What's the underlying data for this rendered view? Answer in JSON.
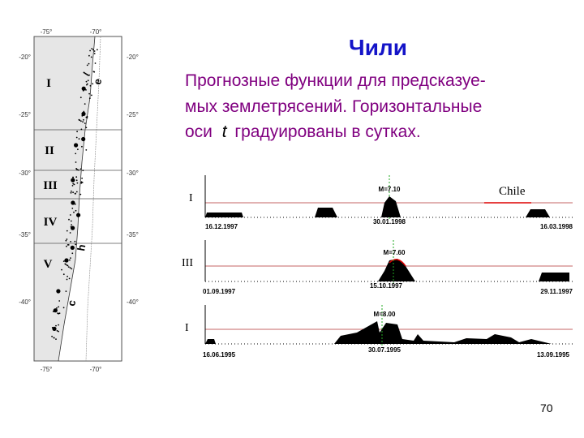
{
  "header": {
    "title": "Чили"
  },
  "body": {
    "lines": [
      "Прогнозные функции для предсказуе-",
      "мых землетрясений.  Горизонтальные"
    ],
    "last_line": [
      "оси ",
      "t",
      " градуированы в сутках."
    ]
  },
  "map": {
    "lat_labels": [
      "-20°",
      "-25°",
      "-30°",
      "-35°",
      "-40°"
    ],
    "lon_labels": [
      "-75°",
      "-70°"
    ],
    "zones": [
      "I",
      "II",
      "III",
      "IV",
      "V"
    ],
    "letters": [
      "e",
      "h",
      "c"
    ]
  },
  "panels": [
    {
      "label": "I",
      "magnitude": "M=7.10",
      "dates": [
        "16.12.1997",
        "30.01.1998",
        "16.03.1998"
      ]
    },
    {
      "label": "III",
      "magnitude": "M=7.60",
      "dates": [
        "01.09.1997",
        "15.10.1997",
        "29.11.1997"
      ]
    },
    {
      "label": "I",
      "magnitude": "M=8.00",
      "dates": [
        "16.06.1995",
        "30.07.1995",
        "13.09.1995"
      ]
    }
  ],
  "annotation": "Chile",
  "page_number": "70"
}
